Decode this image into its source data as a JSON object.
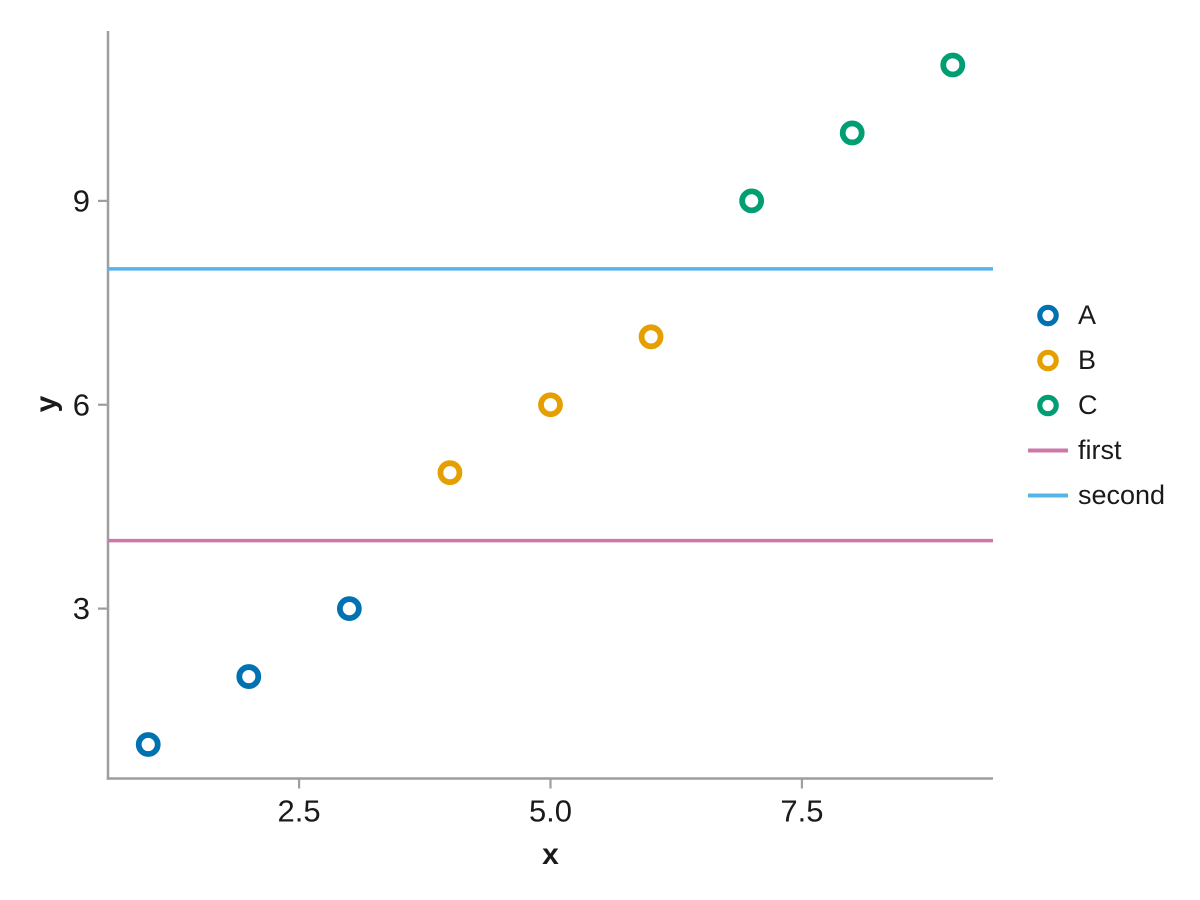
{
  "figure": {
    "background": "#ffffff",
    "axis_color": "#9e9e9e",
    "text_color": "#1a1a1a"
  },
  "chart_data": {
    "type": "scatter",
    "title": "",
    "xlabel": "x",
    "ylabel": "y",
    "xlim": [
      0.6,
      9.4
    ],
    "ylim": [
      0.5,
      11.5
    ],
    "grid": false,
    "legend_position": "right-outside",
    "x_ticks": [
      {
        "value": 2.5,
        "label": "2.5"
      },
      {
        "value": 5.0,
        "label": "5.0"
      },
      {
        "value": 7.5,
        "label": "7.5"
      }
    ],
    "y_ticks": [
      {
        "value": 3,
        "label": "3"
      },
      {
        "value": 6,
        "label": "6"
      },
      {
        "value": 9,
        "label": "9"
      }
    ],
    "series": [
      {
        "name": "A",
        "type": "scatter",
        "color": "#0072B2",
        "x": [
          1,
          2,
          3
        ],
        "y": [
          1,
          2,
          3
        ]
      },
      {
        "name": "B",
        "type": "scatter",
        "color": "#E69F00",
        "x": [
          4,
          5,
          6
        ],
        "y": [
          5,
          6,
          7
        ]
      },
      {
        "name": "C",
        "type": "scatter",
        "color": "#009E73",
        "x": [
          7,
          8,
          9
        ],
        "y": [
          9,
          10,
          11
        ]
      }
    ],
    "hlines": [
      {
        "name": "first",
        "y": 4,
        "color": "#CC79A7"
      },
      {
        "name": "second",
        "y": 8,
        "color": "#56B4E9"
      }
    ]
  },
  "legend": {
    "items": [
      {
        "label": "A",
        "type": "marker",
        "color": "#0072B2"
      },
      {
        "label": "B",
        "type": "marker",
        "color": "#E69F00"
      },
      {
        "label": "C",
        "type": "marker",
        "color": "#009E73"
      },
      {
        "label": "first",
        "type": "line",
        "color": "#CC79A7"
      },
      {
        "label": "second",
        "type": "line",
        "color": "#56B4E9"
      }
    ]
  }
}
